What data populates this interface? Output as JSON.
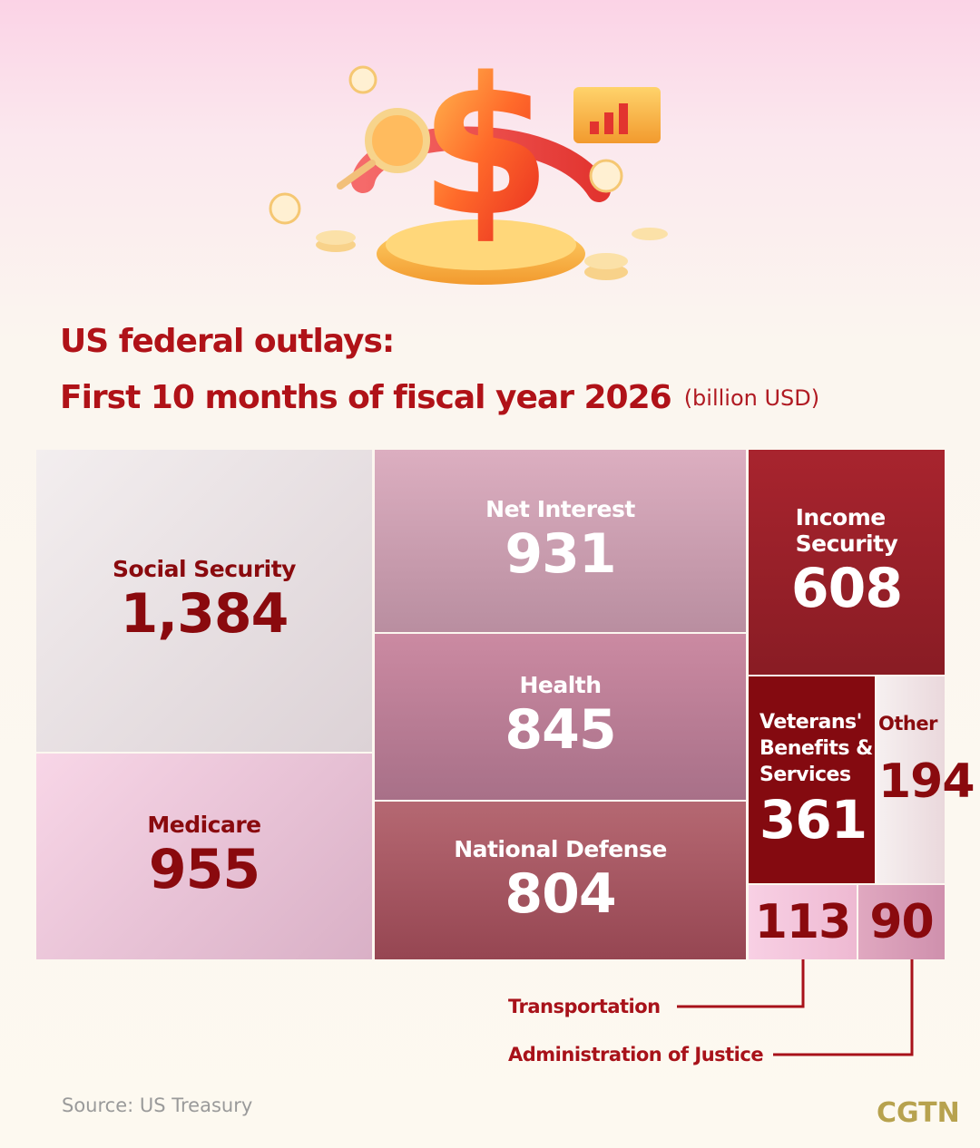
{
  "title_line1": "US federal outlays:",
  "title_line2": "First 10 months of fiscal year 2026",
  "unit": "(billion USD)",
  "source": "Source:  US Treasury",
  "logo": "CGTN",
  "chart_data": {
    "type": "treemap",
    "title": "US federal outlays: First 10 months of fiscal year 2026",
    "unit": "billion USD",
    "items": [
      {
        "label": "Social Security",
        "value": 1384,
        "display": "1,384"
      },
      {
        "label": "Medicare",
        "value": 955,
        "display": "955"
      },
      {
        "label": "Net Interest",
        "value": 931,
        "display": "931"
      },
      {
        "label": "Health",
        "value": 845,
        "display": "845"
      },
      {
        "label": "National Defense",
        "value": 804,
        "display": "804"
      },
      {
        "label": "Income\nSecurity",
        "value": 608,
        "display": "608"
      },
      {
        "label": "Veterans'\nBenefits &\nServices",
        "value": 361,
        "display": "361"
      },
      {
        "label": "Other",
        "value": 194,
        "display": "194"
      },
      {
        "label": "Transportation",
        "value": 113,
        "display": "113"
      },
      {
        "label": "Administration of Justice",
        "value": 90,
        "display": "90"
      }
    ]
  }
}
